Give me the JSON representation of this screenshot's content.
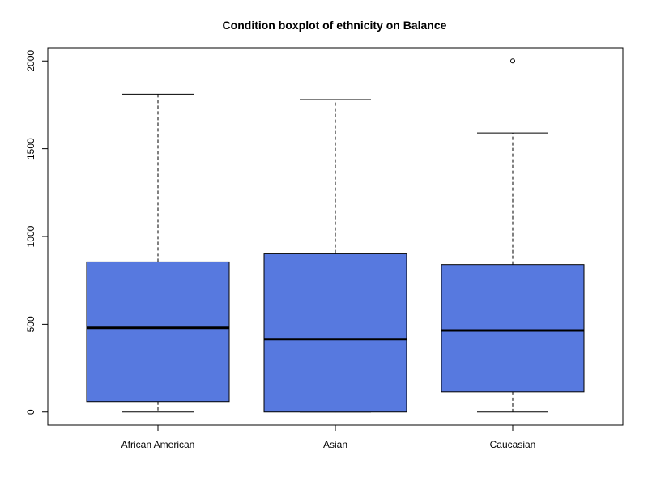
{
  "chart_data": {
    "type": "boxplot",
    "title": "Condition boxplot of  ethnicity  on Balance",
    "xlabel": "",
    "ylabel": "",
    "categories": [
      "African American",
      "Asian",
      "Caucasian"
    ],
    "y_ticks": [
      0,
      500,
      1000,
      1500,
      2000
    ],
    "ylim": [
      -75,
      2075
    ],
    "grid": false,
    "legend": "none",
    "box_fill": "#5779DF",
    "box_stroke": "#000000",
    "boxes": [
      {
        "name": "African American",
        "min": 0,
        "q1": 60,
        "median": 480,
        "q3": 855,
        "max": 1810,
        "outliers": []
      },
      {
        "name": "Asian",
        "min": 0,
        "q1": 0,
        "median": 415,
        "q3": 905,
        "max": 1780,
        "outliers": []
      },
      {
        "name": "Caucasian",
        "min": 0,
        "q1": 115,
        "median": 465,
        "q3": 840,
        "max": 1590,
        "outliers": [
          2000
        ]
      }
    ]
  }
}
